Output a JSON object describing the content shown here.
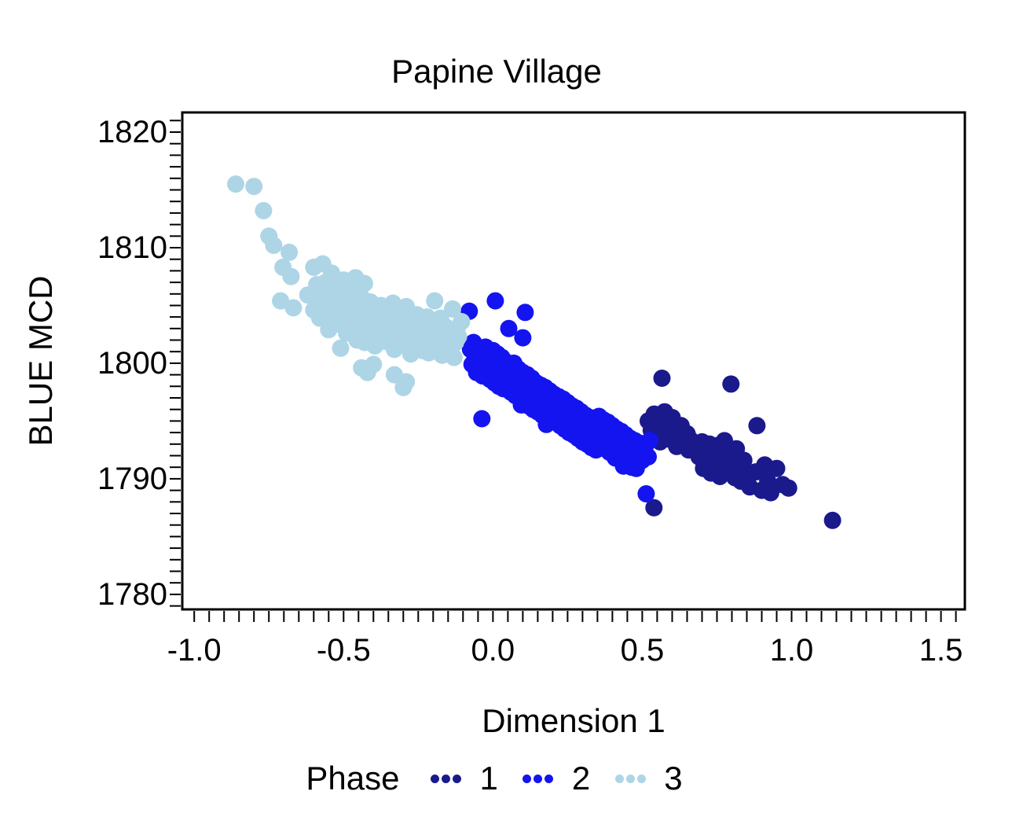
{
  "title": "Papine Village",
  "chart_data": {
    "type": "scatter",
    "title": "Papine Village",
    "xlabel": "Dimension 1",
    "ylabel": "BLUE MCD",
    "xlim": [
      -1.04,
      1.58
    ],
    "ylim": [
      1778.7,
      1821.7
    ],
    "xticks": [
      -1.0,
      -0.5,
      0.0,
      0.5,
      1.0,
      1.5
    ],
    "xtick_labels": [
      "-1.0",
      "-0.5",
      "0.0",
      "0.5",
      "1.0",
      "1.5"
    ],
    "yticks": [
      1780,
      1790,
      1800,
      1810,
      1820
    ],
    "ytick_labels": [
      "1780",
      "1790",
      "1800",
      "1810",
      "1820"
    ],
    "minor_x_step": 0.05,
    "minor_x_range": [
      -1.0,
      1.55
    ],
    "minor_y_step": 1,
    "minor_y_range": [
      1779,
      1821
    ],
    "grid": false,
    "marker_radius_px": 11,
    "legend": {
      "title": "Phase",
      "position": "bottom",
      "entries": [
        {
          "label": "1",
          "color": "#1A1A8C"
        },
        {
          "label": "2",
          "color": "#1414F0"
        },
        {
          "label": "3",
          "color": "#ADD5E6"
        }
      ]
    },
    "series": [
      {
        "name": "1",
        "color": "#1A1A8C",
        "points": [
          [
            0.52,
            1795.0
          ],
          [
            0.53,
            1794.2
          ],
          [
            0.54,
            1795.6
          ],
          [
            0.55,
            1793.7
          ],
          [
            0.555,
            1794.8
          ],
          [
            0.56,
            1793.2
          ],
          [
            0.57,
            1794.5
          ],
          [
            0.575,
            1795.8
          ],
          [
            0.58,
            1793.9
          ],
          [
            0.59,
            1794.9
          ],
          [
            0.595,
            1793.4
          ],
          [
            0.6,
            1795.3
          ],
          [
            0.61,
            1794.1
          ],
          [
            0.615,
            1792.8
          ],
          [
            0.62,
            1793.8
          ],
          [
            0.63,
            1794.6
          ],
          [
            0.64,
            1793.0
          ],
          [
            0.65,
            1793.9
          ],
          [
            0.655,
            1792.5
          ],
          [
            0.66,
            1793.4
          ],
          [
            0.68,
            1792.8
          ],
          [
            0.69,
            1791.9
          ],
          [
            0.7,
            1793.2
          ],
          [
            0.705,
            1790.9
          ],
          [
            0.71,
            1792.2
          ],
          [
            0.72,
            1791.4
          ],
          [
            0.725,
            1793.0
          ],
          [
            0.73,
            1790.5
          ],
          [
            0.74,
            1792.5
          ],
          [
            0.75,
            1791.1
          ],
          [
            0.755,
            1792.9
          ],
          [
            0.76,
            1790.2
          ],
          [
            0.77,
            1791.8
          ],
          [
            0.775,
            1793.3
          ],
          [
            0.78,
            1790.8
          ],
          [
            0.79,
            1792.0
          ],
          [
            0.8,
            1791.3
          ],
          [
            0.81,
            1790.1
          ],
          [
            0.815,
            1792.6
          ],
          [
            0.82,
            1791.0
          ],
          [
            0.83,
            1789.8
          ],
          [
            0.84,
            1791.6
          ],
          [
            0.85,
            1790.4
          ],
          [
            0.884,
            1794.6
          ],
          [
            0.86,
            1789.3
          ],
          [
            0.88,
            1790.6
          ],
          [
            0.9,
            1789.0
          ],
          [
            0.91,
            1791.2
          ],
          [
            0.92,
            1789.8
          ],
          [
            0.95,
            1790.9
          ],
          [
            0.97,
            1789.5
          ],
          [
            0.99,
            1789.2
          ],
          [
            0.93,
            1788.8
          ],
          [
            0.566,
            1798.7
          ],
          [
            0.797,
            1798.2
          ],
          [
            0.539,
            1787.5
          ],
          [
            1.137,
            1786.4
          ]
        ]
      },
      {
        "name": "2",
        "color": "#1414F0",
        "points": [
          [
            -0.079,
            1804.5
          ],
          [
            0.008,
            1805.4
          ],
          [
            0.108,
            1804.4
          ],
          [
            0.053,
            1803.0
          ],
          [
            0.1,
            1802.2
          ],
          [
            -0.037,
            1795.2
          ],
          [
            0.095,
            1796.4
          ],
          [
            0.179,
            1794.7
          ],
          [
            0.41,
            1791.8
          ],
          [
            0.437,
            1791.1
          ],
          [
            0.513,
            1788.7
          ],
          [
            -0.075,
            1801.2
          ],
          [
            -0.07,
            1799.9
          ],
          [
            -0.065,
            1801.8
          ],
          [
            -0.06,
            1800.4
          ],
          [
            -0.055,
            1799.2
          ],
          [
            -0.05,
            1801.0
          ],
          [
            -0.045,
            1799.7
          ],
          [
            -0.04,
            1800.9
          ],
          [
            -0.035,
            1798.9
          ],
          [
            -0.03,
            1800.2
          ],
          [
            -0.025,
            1801.4
          ],
          [
            -0.02,
            1799.4
          ],
          [
            -0.015,
            1800.7
          ],
          [
            -0.01,
            1798.6
          ],
          [
            -0.005,
            1799.9
          ],
          [
            0.0,
            1801.1
          ],
          [
            0.005,
            1798.3
          ],
          [
            0.01,
            1799.6
          ],
          [
            0.015,
            1800.8
          ],
          [
            0.02,
            1798.0
          ],
          [
            0.025,
            1799.3
          ],
          [
            0.03,
            1800.5
          ],
          [
            0.035,
            1797.8
          ],
          [
            0.04,
            1799.0
          ],
          [
            0.045,
            1800.1
          ],
          [
            0.05,
            1798.6
          ],
          [
            0.055,
            1799.8
          ],
          [
            0.06,
            1797.5
          ],
          [
            0.065,
            1798.9
          ],
          [
            0.07,
            1800.0
          ],
          [
            0.075,
            1797.2
          ],
          [
            0.08,
            1798.4
          ],
          [
            0.085,
            1799.5
          ],
          [
            0.09,
            1796.9
          ],
          [
            0.095,
            1798.1
          ],
          [
            0.1,
            1799.2
          ],
          [
            0.105,
            1796.6
          ],
          [
            0.11,
            1797.8
          ],
          [
            0.115,
            1799.0
          ],
          [
            0.12,
            1796.3
          ],
          [
            0.125,
            1797.5
          ],
          [
            0.13,
            1798.7
          ],
          [
            0.135,
            1796.0
          ],
          [
            0.14,
            1797.2
          ],
          [
            0.145,
            1798.3
          ],
          [
            0.15,
            1795.8
          ],
          [
            0.155,
            1797.0
          ],
          [
            0.16,
            1798.1
          ],
          [
            0.165,
            1795.5
          ],
          [
            0.17,
            1796.7
          ],
          [
            0.175,
            1797.9
          ],
          [
            0.18,
            1795.2
          ],
          [
            0.185,
            1796.4
          ],
          [
            0.19,
            1797.6
          ],
          [
            0.195,
            1795.0
          ],
          [
            0.2,
            1796.2
          ],
          [
            0.205,
            1797.3
          ],
          [
            0.21,
            1794.9
          ],
          [
            0.215,
            1796.0
          ],
          [
            0.22,
            1797.1
          ],
          [
            0.225,
            1794.6
          ],
          [
            0.23,
            1795.8
          ],
          [
            0.235,
            1796.9
          ],
          [
            0.24,
            1794.3
          ],
          [
            0.245,
            1795.5
          ],
          [
            0.25,
            1796.6
          ],
          [
            0.255,
            1794.0
          ],
          [
            0.26,
            1795.2
          ],
          [
            0.265,
            1796.3
          ],
          [
            0.27,
            1793.8
          ],
          [
            0.275,
            1794.9
          ],
          [
            0.28,
            1796.1
          ],
          [
            0.285,
            1793.5
          ],
          [
            0.29,
            1794.7
          ],
          [
            0.295,
            1795.8
          ],
          [
            0.3,
            1793.2
          ],
          [
            0.305,
            1794.4
          ],
          [
            0.31,
            1795.5
          ],
          [
            0.315,
            1793.0
          ],
          [
            0.32,
            1794.1
          ],
          [
            0.325,
            1795.3
          ],
          [
            0.33,
            1792.7
          ],
          [
            0.335,
            1793.9
          ],
          [
            0.34,
            1795.0
          ],
          [
            0.345,
            1792.5
          ],
          [
            0.35,
            1794.2
          ],
          [
            0.355,
            1795.4
          ],
          [
            0.36,
            1792.9
          ],
          [
            0.365,
            1794.0
          ],
          [
            0.37,
            1795.1
          ],
          [
            0.375,
            1792.6
          ],
          [
            0.38,
            1793.8
          ],
          [
            0.385,
            1794.9
          ],
          [
            0.39,
            1792.3
          ],
          [
            0.395,
            1793.5
          ],
          [
            0.4,
            1794.6
          ],
          [
            0.405,
            1792.0
          ],
          [
            0.41,
            1793.2
          ],
          [
            0.415,
            1794.3
          ],
          [
            0.42,
            1791.8
          ],
          [
            0.425,
            1793.0
          ],
          [
            0.43,
            1794.1
          ],
          [
            0.435,
            1791.5
          ],
          [
            0.44,
            1792.7
          ],
          [
            0.445,
            1793.8
          ],
          [
            0.45,
            1791.2
          ],
          [
            0.455,
            1792.4
          ],
          [
            0.46,
            1793.5
          ],
          [
            0.465,
            1791.0
          ],
          [
            0.47,
            1792.1
          ],
          [
            0.475,
            1793.3
          ],
          [
            0.48,
            1790.9
          ],
          [
            0.485,
            1792.0
          ],
          [
            0.49,
            1793.1
          ],
          [
            0.5,
            1791.6
          ],
          [
            0.51,
            1792.8
          ],
          [
            0.52,
            1791.9
          ],
          [
            0.525,
            1793.3
          ]
        ]
      },
      {
        "name": "3",
        "color": "#ADD5E6",
        "points": [
          [
            -0.861,
            1815.5
          ],
          [
            -0.8,
            1815.3
          ],
          [
            -0.768,
            1813.2
          ],
          [
            -0.75,
            1811.0
          ],
          [
            -0.734,
            1810.2
          ],
          [
            -0.703,
            1808.3
          ],
          [
            -0.682,
            1809.6
          ],
          [
            -0.676,
            1807.5
          ],
          [
            -0.711,
            1805.4
          ],
          [
            -0.668,
            1804.8
          ],
          [
            -0.62,
            1805.9
          ],
          [
            -0.6,
            1808.3
          ],
          [
            -0.6,
            1804.6
          ],
          [
            -0.59,
            1806.8
          ],
          [
            -0.58,
            1803.9
          ],
          [
            -0.57,
            1808.6
          ],
          [
            -0.57,
            1805.5
          ],
          [
            -0.56,
            1807.0
          ],
          [
            -0.555,
            1804.2
          ],
          [
            -0.55,
            1802.9
          ],
          [
            -0.54,
            1807.8
          ],
          [
            -0.54,
            1806.1
          ],
          [
            -0.53,
            1805.0
          ],
          [
            -0.525,
            1803.4
          ],
          [
            -0.52,
            1806.7
          ],
          [
            -0.51,
            1804.8
          ],
          [
            -0.51,
            1801.3
          ],
          [
            -0.5,
            1807.2
          ],
          [
            -0.5,
            1803.7
          ],
          [
            -0.495,
            1805.9
          ],
          [
            -0.49,
            1802.6
          ],
          [
            -0.48,
            1804.3
          ],
          [
            -0.475,
            1806.2
          ],
          [
            -0.47,
            1803.1
          ],
          [
            -0.46,
            1807.4
          ],
          [
            -0.46,
            1805.2
          ],
          [
            -0.455,
            1802.0
          ],
          [
            -0.45,
            1804.0
          ],
          [
            -0.44,
            1805.7
          ],
          [
            -0.44,
            1799.6
          ],
          [
            -0.435,
            1803.3
          ],
          [
            -0.43,
            1806.9
          ],
          [
            -0.43,
            1801.8
          ],
          [
            -0.42,
            1804.7
          ],
          [
            -0.42,
            1799.2
          ],
          [
            -0.415,
            1802.5
          ],
          [
            -0.41,
            1805.3
          ],
          [
            -0.4,
            1803.6
          ],
          [
            -0.4,
            1799.9
          ],
          [
            -0.395,
            1801.5
          ],
          [
            -0.39,
            1804.4
          ],
          [
            -0.38,
            1802.8
          ],
          [
            -0.375,
            1805.0
          ],
          [
            -0.37,
            1803.9
          ],
          [
            -0.36,
            1801.9
          ],
          [
            -0.355,
            1804.1
          ],
          [
            -0.35,
            1802.4
          ],
          [
            -0.34,
            1803.5
          ],
          [
            -0.335,
            1805.2
          ],
          [
            -0.33,
            1801.2
          ],
          [
            -0.33,
            1799.0
          ],
          [
            -0.32,
            1803.0
          ],
          [
            -0.315,
            1804.6
          ],
          [
            -0.31,
            1802.2
          ],
          [
            -0.3,
            1803.8
          ],
          [
            -0.3,
            1797.9
          ],
          [
            -0.295,
            1801.6
          ],
          [
            -0.29,
            1804.9
          ],
          [
            -0.29,
            1798.4
          ],
          [
            -0.28,
            1802.7
          ],
          [
            -0.275,
            1800.8
          ],
          [
            -0.27,
            1803.3
          ],
          [
            -0.26,
            1801.9
          ],
          [
            -0.255,
            1804.2
          ],
          [
            -0.25,
            1802.5
          ],
          [
            -0.24,
            1803.7
          ],
          [
            -0.235,
            1801.1
          ],
          [
            -0.23,
            1802.9
          ],
          [
            -0.22,
            1804.0
          ],
          [
            -0.215,
            1800.9
          ],
          [
            -0.21,
            1802.1
          ],
          [
            -0.2,
            1803.2
          ],
          [
            -0.195,
            1805.4
          ],
          [
            -0.19,
            1801.5
          ],
          [
            -0.18,
            1802.6
          ],
          [
            -0.175,
            1803.9
          ],
          [
            -0.17,
            1800.7
          ],
          [
            -0.16,
            1802.0
          ],
          [
            -0.155,
            1803.1
          ],
          [
            -0.15,
            1801.3
          ],
          [
            -0.14,
            1802.4
          ],
          [
            -0.135,
            1804.7
          ],
          [
            -0.13,
            1800.5
          ],
          [
            -0.125,
            1801.8
          ],
          [
            -0.12,
            1803.0
          ],
          [
            -0.115,
            1802.3
          ],
          [
            -0.105,
            1803.6
          ]
        ]
      }
    ]
  }
}
